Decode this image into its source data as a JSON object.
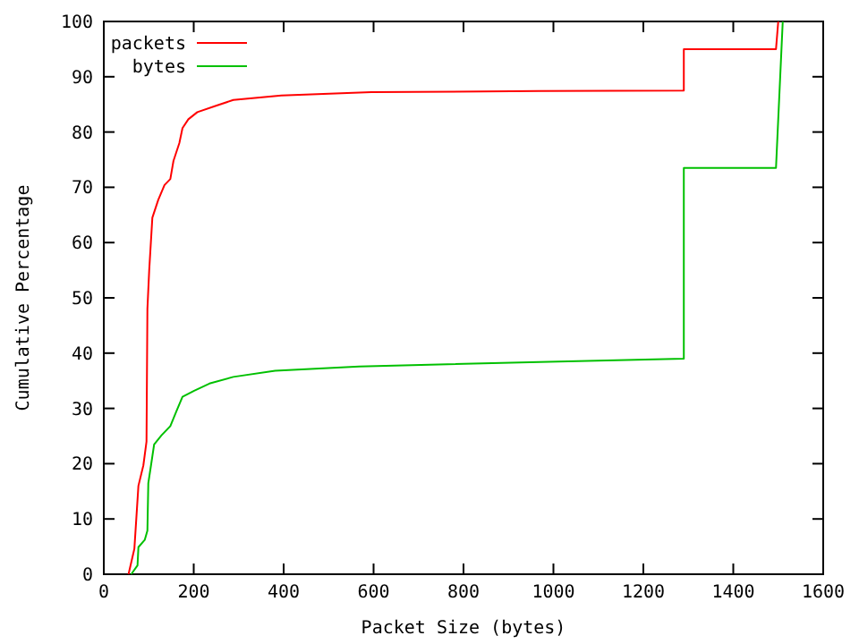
{
  "chart_data": {
    "type": "line",
    "xlabel": "Packet Size (bytes)",
    "ylabel": "Cumulative Percentage",
    "xlim": [
      0,
      1600
    ],
    "ylim": [
      0,
      100
    ],
    "xticks": [
      0,
      200,
      400,
      600,
      800,
      1000,
      1200,
      1400,
      1600
    ],
    "yticks": [
      0,
      10,
      20,
      30,
      40,
      50,
      60,
      70,
      80,
      90,
      100
    ],
    "grid": false,
    "legend": "top left",
    "marker": "none",
    "line_style": "solid",
    "series": [
      {
        "name": "packets",
        "color": "#ff0000",
        "x": [
          55,
          68,
          77,
          88,
          95,
          97,
          101,
          108,
          121,
          135,
          148,
          155,
          168,
          175,
          188,
          208,
          248,
          288,
          395,
          595,
          968,
          1290,
          1290,
          1495,
          1500
        ],
        "values": [
          0,
          4.6,
          16,
          19.7,
          24,
          48,
          55,
          64.5,
          67.7,
          70.4,
          71.5,
          74.8,
          78,
          80.7,
          82.3,
          83.6,
          84.7,
          85.8,
          86.6,
          87.2,
          87.4,
          87.5,
          95,
          95,
          100
        ]
      },
      {
        "name": "bytes",
        "color": "#00c000",
        "x": [
          61,
          75,
          77,
          91,
          97,
          99,
          105,
          112,
          128,
          148,
          161,
          175,
          201,
          235,
          288,
          381,
          568,
          968,
          1290,
          1290,
          1495,
          1510
        ],
        "values": [
          0,
          1.6,
          4.9,
          6.2,
          7.9,
          16.5,
          19.7,
          23.5,
          25.1,
          26.8,
          29.4,
          32.1,
          33.2,
          34.5,
          35.7,
          36.8,
          37.6,
          38.4,
          39,
          73.5,
          73.5,
          100
        ]
      }
    ]
  }
}
